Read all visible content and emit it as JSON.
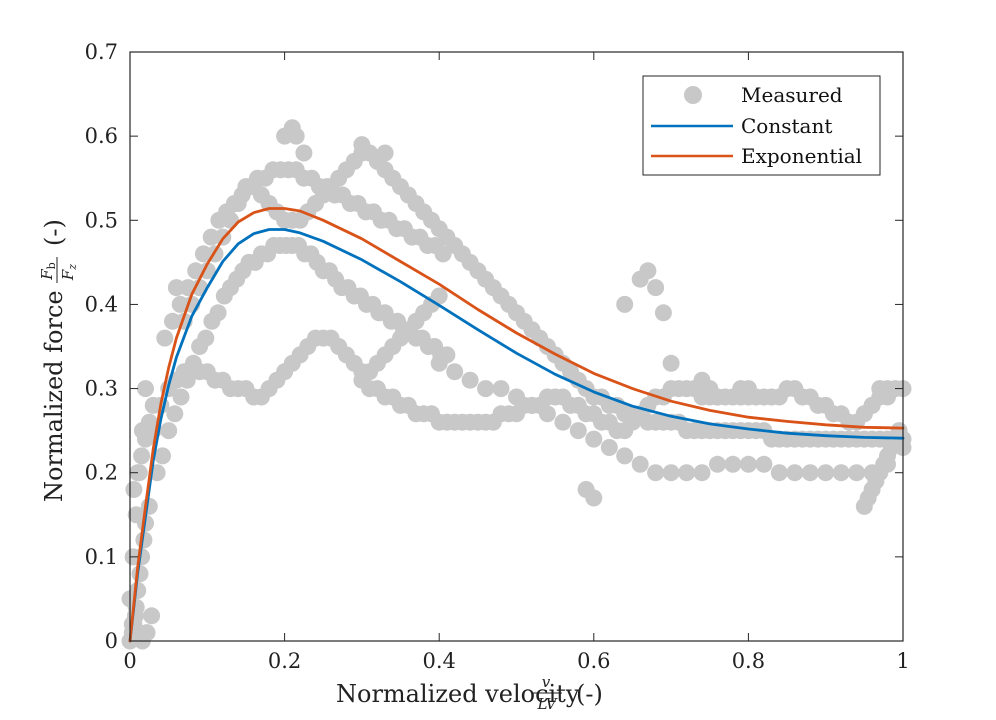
{
  "chart_data": {
    "type": "scatter",
    "title": "",
    "xlabel": "Normalized velocity",
    "xlabel_fraction": {
      "num": "v",
      "den": "LV"
    },
    "xlabel_unit": "(-)",
    "ylabel": "Normalized force",
    "ylabel_fraction": {
      "num": "F",
      "num_sub": "b",
      "den": "F",
      "den_sub": "z"
    },
    "ylabel_unit": "(-)",
    "xlim": [
      0,
      1
    ],
    "ylim": [
      0,
      0.7
    ],
    "xticks": [
      0,
      0.2,
      0.4,
      0.6,
      0.8,
      1
    ],
    "xtick_labels": [
      "0",
      "0.2",
      "0.4",
      "0.6",
      "0.8",
      "1"
    ],
    "yticks": [
      0,
      0.1,
      0.2,
      0.3,
      0.4,
      0.5,
      0.6,
      0.7
    ],
    "ytick_labels": [
      "0",
      "0.1",
      "0.2",
      "0.3",
      "0.4",
      "0.5",
      "0.6",
      "0.7"
    ],
    "grid": false,
    "legend_position": "top-right",
    "series": [
      {
        "name": "Measured",
        "kind": "scatter",
        "color": "#c8c8c8",
        "x": [
          0.0,
          0.003,
          0.005,
          0.008,
          0.01,
          0.013,
          0.015,
          0.018,
          0.02,
          0.025,
          0.005,
          0.01,
          0.015,
          0.02,
          0.025,
          0.03,
          0.0,
          0.004,
          0.008,
          0.012,
          0.016,
          0.02,
          0.003,
          0.007,
          0.011,
          0.016,
          0.022,
          0.028,
          0.035,
          0.042,
          0.05,
          0.058,
          0.066,
          0.074,
          0.082,
          0.09,
          0.098,
          0.106,
          0.114,
          0.122,
          0.13,
          0.138,
          0.146,
          0.154,
          0.162,
          0.17,
          0.178,
          0.186,
          0.194,
          0.202,
          0.21,
          0.218,
          0.226,
          0.234,
          0.242,
          0.25,
          0.258,
          0.266,
          0.274,
          0.282,
          0.29,
          0.298,
          0.306,
          0.314,
          0.322,
          0.33,
          0.338,
          0.346,
          0.354,
          0.362,
          0.37,
          0.378,
          0.386,
          0.394,
          0.402,
          0.41,
          0.045,
          0.055,
          0.065,
          0.075,
          0.085,
          0.095,
          0.105,
          0.115,
          0.125,
          0.135,
          0.145,
          0.155,
          0.165,
          0.175,
          0.185,
          0.195,
          0.205,
          0.215,
          0.225,
          0.235,
          0.245,
          0.255,
          0.265,
          0.275,
          0.285,
          0.295,
          0.305,
          0.315,
          0.325,
          0.335,
          0.345,
          0.355,
          0.365,
          0.375,
          0.385,
          0.395,
          0.405,
          0.03,
          0.04,
          0.05,
          0.06,
          0.07,
          0.08,
          0.09,
          0.1,
          0.11,
          0.12,
          0.13,
          0.14,
          0.15,
          0.16,
          0.17,
          0.18,
          0.19,
          0.2,
          0.21,
          0.22,
          0.23,
          0.24,
          0.25,
          0.26,
          0.27,
          0.28,
          0.29,
          0.3,
          0.31,
          0.32,
          0.33,
          0.34,
          0.35,
          0.36,
          0.37,
          0.38,
          0.39,
          0.4,
          0.06,
          0.07,
          0.08,
          0.09,
          0.1,
          0.11,
          0.12,
          0.13,
          0.14,
          0.15,
          0.16,
          0.17,
          0.18,
          0.19,
          0.2,
          0.21,
          0.22,
          0.23,
          0.24,
          0.25,
          0.26,
          0.27,
          0.28,
          0.29,
          0.3,
          0.31,
          0.32,
          0.33,
          0.34,
          0.35,
          0.36,
          0.37,
          0.38,
          0.39,
          0.4,
          0.41,
          0.42,
          0.43,
          0.44,
          0.45,
          0.46,
          0.47,
          0.48,
          0.49,
          0.5,
          0.51,
          0.52,
          0.53,
          0.54,
          0.55,
          0.56,
          0.57,
          0.58,
          0.59,
          0.6,
          0.61,
          0.62,
          0.63,
          0.64,
          0.65,
          0.66,
          0.67,
          0.68,
          0.69,
          0.7,
          0.71,
          0.72,
          0.73,
          0.74,
          0.75,
          0.76,
          0.77,
          0.78,
          0.79,
          0.8,
          0.81,
          0.82,
          0.83,
          0.84,
          0.85,
          0.86,
          0.87,
          0.88,
          0.89,
          0.9,
          0.91,
          0.92,
          0.93,
          0.94,
          0.95,
          0.96,
          0.97,
          0.98,
          0.99,
          1.0,
          0.3,
          0.31,
          0.32,
          0.33,
          0.34,
          0.35,
          0.36,
          0.37,
          0.38,
          0.39,
          0.4,
          0.41,
          0.42,
          0.43,
          0.44,
          0.45,
          0.46,
          0.47,
          0.48,
          0.49,
          0.5,
          0.51,
          0.52,
          0.53,
          0.54,
          0.55,
          0.56,
          0.57,
          0.58,
          0.59,
          0.6,
          0.61,
          0.62,
          0.63,
          0.64,
          0.65,
          0.66,
          0.67,
          0.68,
          0.69,
          0.7,
          0.71,
          0.72,
          0.73,
          0.74,
          0.75,
          0.76,
          0.77,
          0.78,
          0.79,
          0.8,
          0.81,
          0.82,
          0.83,
          0.84,
          0.85,
          0.86,
          0.87,
          0.88,
          0.89,
          0.9,
          0.91,
          0.92,
          0.93,
          0.94,
          0.95,
          0.96,
          0.97,
          0.98,
          0.99,
          1.0,
          0.4,
          0.42,
          0.44,
          0.46,
          0.48,
          0.5,
          0.52,
          0.54,
          0.56,
          0.58,
          0.6,
          0.62,
          0.64,
          0.66,
          0.68,
          0.7,
          0.72,
          0.74,
          0.76,
          0.78,
          0.8,
          0.82,
          0.84,
          0.86,
          0.88,
          0.9,
          0.92,
          0.94,
          0.96,
          0.98,
          1.0,
          0.95,
          0.955,
          0.96,
          0.965,
          0.97,
          0.975,
          0.98,
          0.985,
          0.99,
          0.995,
          0.21,
          0.215,
          0.225,
          0.3,
          0.32,
          0.33,
          0.2,
          0.59,
          0.6,
          0.64,
          0.66,
          0.67,
          0.68,
          0.69,
          0.7,
          0.74,
          0.75,
          0.76,
          0.79,
          0.8,
          0.95,
          0.96,
          0.97,
          0.98
        ],
        "y": [
          0.0,
          0.01,
          0.02,
          0.04,
          0.06,
          0.08,
          0.1,
          0.12,
          0.14,
          0.16,
          0.18,
          0.2,
          0.22,
          0.24,
          0.26,
          0.28,
          0.05,
          0.1,
          0.15,
          0.2,
          0.25,
          0.3,
          0.02,
          0.03,
          0.01,
          0.0,
          0.01,
          0.03,
          0.2,
          0.22,
          0.25,
          0.27,
          0.29,
          0.31,
          0.33,
          0.35,
          0.36,
          0.38,
          0.39,
          0.41,
          0.42,
          0.43,
          0.44,
          0.45,
          0.45,
          0.46,
          0.46,
          0.47,
          0.47,
          0.47,
          0.47,
          0.47,
          0.46,
          0.46,
          0.45,
          0.44,
          0.44,
          0.43,
          0.42,
          0.42,
          0.41,
          0.41,
          0.4,
          0.4,
          0.39,
          0.39,
          0.38,
          0.38,
          0.37,
          0.37,
          0.36,
          0.36,
          0.35,
          0.35,
          0.34,
          0.34,
          0.36,
          0.38,
          0.4,
          0.42,
          0.44,
          0.46,
          0.48,
          0.5,
          0.51,
          0.52,
          0.53,
          0.54,
          0.55,
          0.55,
          0.56,
          0.56,
          0.56,
          0.56,
          0.55,
          0.55,
          0.54,
          0.54,
          0.53,
          0.53,
          0.52,
          0.52,
          0.51,
          0.51,
          0.5,
          0.5,
          0.49,
          0.49,
          0.48,
          0.48,
          0.47,
          0.47,
          0.46,
          0.25,
          0.28,
          0.3,
          0.31,
          0.32,
          0.32,
          0.32,
          0.32,
          0.31,
          0.31,
          0.3,
          0.3,
          0.3,
          0.29,
          0.29,
          0.3,
          0.31,
          0.32,
          0.33,
          0.34,
          0.35,
          0.36,
          0.36,
          0.36,
          0.35,
          0.34,
          0.33,
          0.32,
          0.32,
          0.33,
          0.34,
          0.35,
          0.36,
          0.37,
          0.38,
          0.39,
          0.4,
          0.41,
          0.42,
          0.38,
          0.4,
          0.42,
          0.44,
          0.46,
          0.48,
          0.5,
          0.52,
          0.54,
          0.54,
          0.53,
          0.52,
          0.51,
          0.5,
          0.5,
          0.5,
          0.51,
          0.52,
          0.53,
          0.54,
          0.55,
          0.56,
          0.57,
          0.58,
          0.58,
          0.57,
          0.56,
          0.55,
          0.54,
          0.53,
          0.52,
          0.51,
          0.5,
          0.49,
          0.48,
          0.47,
          0.46,
          0.45,
          0.44,
          0.43,
          0.42,
          0.41,
          0.4,
          0.39,
          0.38,
          0.37,
          0.36,
          0.35,
          0.34,
          0.33,
          0.32,
          0.31,
          0.3,
          0.29,
          0.29,
          0.28,
          0.28,
          0.27,
          0.27,
          0.27,
          0.26,
          0.26,
          0.26,
          0.26,
          0.26,
          0.25,
          0.25,
          0.25,
          0.25,
          0.25,
          0.25,
          0.25,
          0.25,
          0.25,
          0.25,
          0.25,
          0.24,
          0.24,
          0.24,
          0.24,
          0.24,
          0.24,
          0.24,
          0.24,
          0.24,
          0.24,
          0.24,
          0.24,
          0.24,
          0.24,
          0.24,
          0.24,
          0.24,
          0.24,
          0.31,
          0.3,
          0.3,
          0.29,
          0.29,
          0.28,
          0.28,
          0.27,
          0.27,
          0.27,
          0.26,
          0.26,
          0.26,
          0.26,
          0.26,
          0.26,
          0.26,
          0.26,
          0.27,
          0.27,
          0.27,
          0.28,
          0.28,
          0.28,
          0.29,
          0.29,
          0.29,
          0.28,
          0.28,
          0.27,
          0.27,
          0.26,
          0.26,
          0.25,
          0.25,
          0.26,
          0.27,
          0.28,
          0.29,
          0.29,
          0.3,
          0.3,
          0.3,
          0.3,
          0.29,
          0.29,
          0.29,
          0.29,
          0.29,
          0.29,
          0.29,
          0.29,
          0.29,
          0.29,
          0.29,
          0.3,
          0.3,
          0.29,
          0.29,
          0.28,
          0.28,
          0.27,
          0.27,
          0.26,
          0.26,
          0.27,
          0.28,
          0.29,
          0.3,
          0.3,
          0.3,
          0.33,
          0.32,
          0.31,
          0.3,
          0.3,
          0.29,
          0.28,
          0.27,
          0.26,
          0.25,
          0.24,
          0.23,
          0.22,
          0.21,
          0.2,
          0.2,
          0.2,
          0.2,
          0.21,
          0.21,
          0.21,
          0.21,
          0.2,
          0.2,
          0.2,
          0.2,
          0.2,
          0.2,
          0.2,
          0.21,
          0.23,
          0.16,
          0.17,
          0.18,
          0.19,
          0.2,
          0.21,
          0.22,
          0.23,
          0.24,
          0.25,
          0.61,
          0.6,
          0.58,
          0.59,
          0.57,
          0.58,
          0.6,
          0.18,
          0.17,
          0.4,
          0.43,
          0.44,
          0.42,
          0.39,
          0.33,
          0.31,
          0.3,
          0.29,
          0.3,
          0.3,
          0.27,
          0.28,
          0.3,
          0.29
        ]
      },
      {
        "name": "Constant",
        "kind": "line",
        "color": "#0072bd",
        "x": [
          0,
          0.01,
          0.02,
          0.03,
          0.04,
          0.05,
          0.06,
          0.08,
          0.1,
          0.12,
          0.14,
          0.16,
          0.18,
          0.2,
          0.22,
          0.25,
          0.3,
          0.35,
          0.4,
          0.45,
          0.5,
          0.55,
          0.6,
          0.65,
          0.7,
          0.75,
          0.8,
          0.85,
          0.9,
          0.95,
          1
        ],
        "y": [
          0,
          0.081,
          0.148,
          0.214,
          0.264,
          0.304,
          0.337,
          0.386,
          0.42,
          0.451,
          0.472,
          0.484,
          0.489,
          0.489,
          0.485,
          0.475,
          0.453,
          0.427,
          0.399,
          0.37,
          0.342,
          0.317,
          0.296,
          0.279,
          0.267,
          0.258,
          0.252,
          0.247,
          0.244,
          0.242,
          0.241
        ]
      },
      {
        "name": "Exponential",
        "kind": "line",
        "color": "#d95319",
        "x": [
          0,
          0.01,
          0.02,
          0.03,
          0.04,
          0.05,
          0.06,
          0.08,
          0.1,
          0.12,
          0.14,
          0.16,
          0.18,
          0.2,
          0.22,
          0.25,
          0.3,
          0.35,
          0.4,
          0.45,
          0.5,
          0.55,
          0.6,
          0.65,
          0.7,
          0.75,
          0.8,
          0.85,
          0.9,
          0.95,
          1
        ],
        "y": [
          0,
          0.088,
          0.16,
          0.228,
          0.282,
          0.325,
          0.36,
          0.412,
          0.448,
          0.478,
          0.498,
          0.509,
          0.514,
          0.514,
          0.511,
          0.5,
          0.478,
          0.451,
          0.424,
          0.394,
          0.366,
          0.341,
          0.318,
          0.3,
          0.285,
          0.274,
          0.266,
          0.261,
          0.257,
          0.254,
          0.253
        ]
      }
    ]
  }
}
